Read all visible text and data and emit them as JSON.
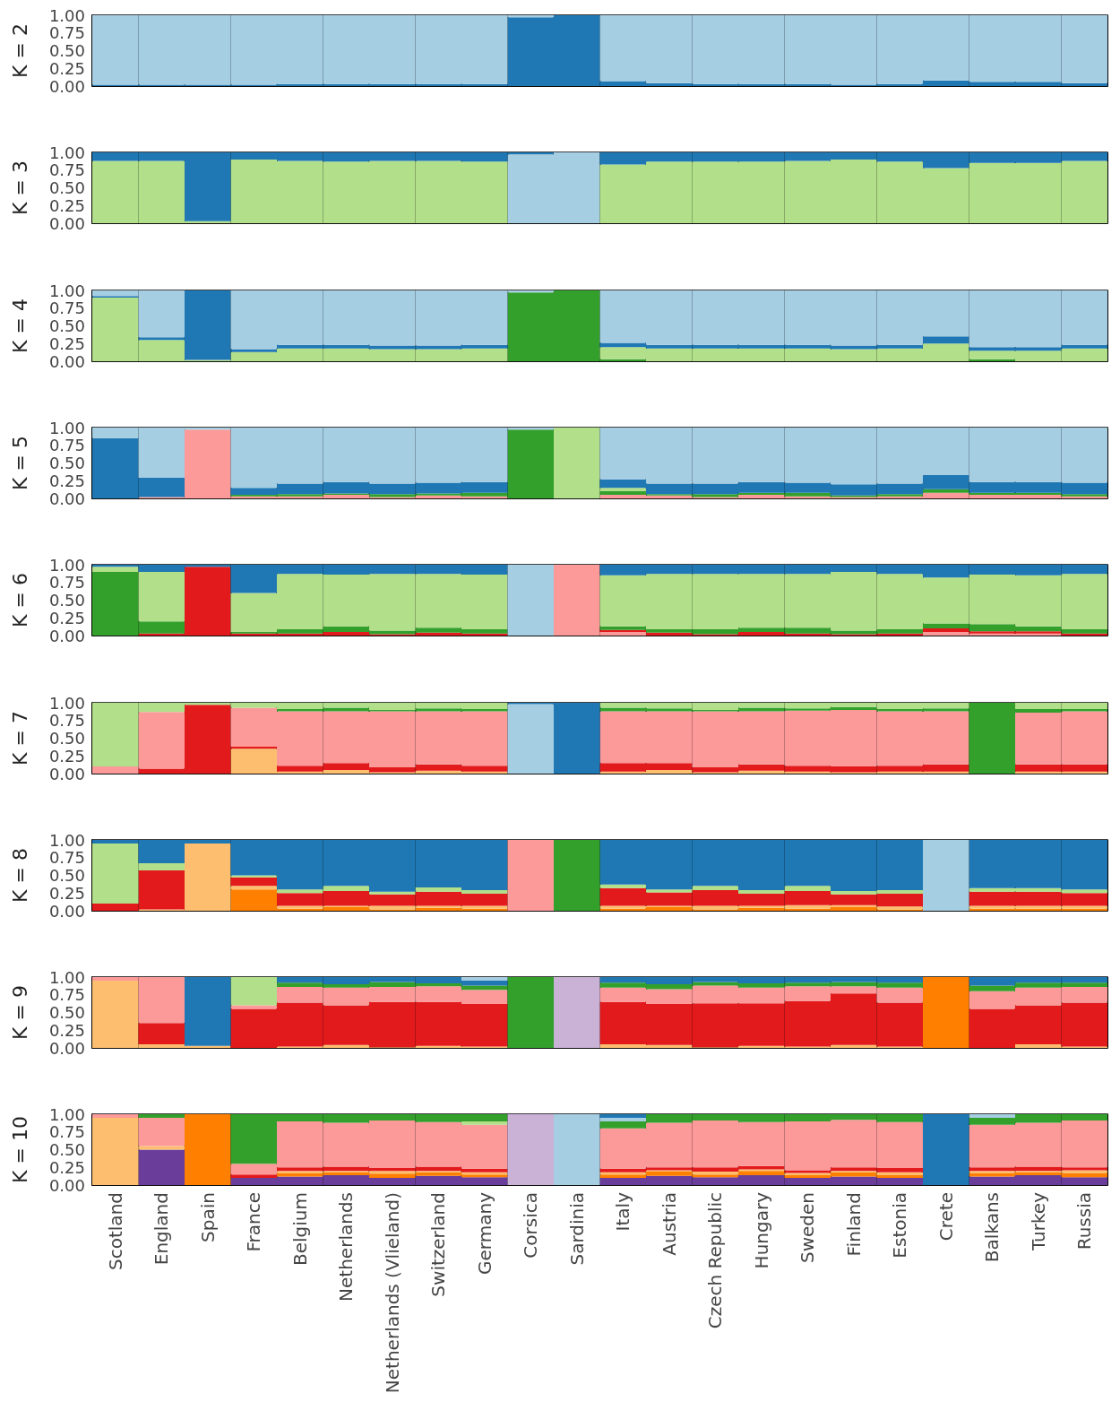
{
  "chart_data": [
    {
      "type": "bar",
      "ylabel": "K = 2",
      "stacked": true,
      "grid": "x",
      "categories": [
        null,
        null,
        null,
        null,
        null,
        null,
        null,
        null,
        null,
        null,
        null,
        null,
        null,
        null,
        null,
        null,
        null,
        null,
        null,
        null,
        null,
        null
      ],
      "ylim": [
        0,
        1
      ],
      "yticks": [
        {
          "value": 0,
          "label": "0.00"
        },
        {
          "value": 0.25,
          "label": "0.25"
        },
        {
          "value": 0.5,
          "label": "0.50"
        },
        {
          "value": 0.75,
          "label": "0.75"
        },
        {
          "value": 1,
          "label": "1.00"
        }
      ],
      "series": [
        {
          "color": "#1f78b4",
          "values": [
            0.02,
            0.02,
            0.02,
            0.02,
            0.03,
            0.03,
            0.03,
            0.03,
            0.03,
            0.97,
            1,
            0.07,
            0.04,
            0.03,
            0.03,
            0.03,
            0.02,
            0.03,
            0.08,
            0.06,
            0.06,
            0.04
          ]
        },
        {
          "color": "#a6cee3",
          "values": [
            0.98,
            0.98,
            0.98,
            0.98,
            0.97,
            0.97,
            0.97,
            0.97,
            0.97,
            0.03,
            0,
            0.93,
            0.96,
            0.97,
            0.97,
            0.97,
            0.98,
            0.97,
            0.92,
            0.94,
            0.94,
            0.96
          ]
        }
      ]
    },
    {
      "type": "bar",
      "ylabel": "K = 3",
      "stacked": true,
      "grid": "x",
      "categories": [
        null,
        null,
        null,
        null,
        null,
        null,
        null,
        null,
        null,
        null,
        null,
        null,
        null,
        null,
        null,
        null,
        null,
        null,
        null,
        null,
        null,
        null
      ],
      "ylim": [
        0,
        1
      ],
      "yticks": [
        {
          "value": 0,
          "label": "0.00"
        },
        {
          "value": 0.25,
          "label": "0.25"
        },
        {
          "value": 0.5,
          "label": "0.50"
        },
        {
          "value": 0.75,
          "label": "0.75"
        },
        {
          "value": 1,
          "label": "1.00"
        }
      ],
      "series": [
        {
          "color": "#a6cee3",
          "values": [
            0,
            0,
            0,
            0,
            0,
            0,
            0,
            0,
            0,
            0.97,
            1,
            0,
            0,
            0,
            0,
            0,
            0,
            0,
            0,
            0,
            0,
            0
          ]
        },
        {
          "color": "#b2df8a",
          "values": [
            0.88,
            0.88,
            0.03,
            0.9,
            0.88,
            0.87,
            0.88,
            0.88,
            0.87,
            0,
            0,
            0.83,
            0.87,
            0.87,
            0.87,
            0.88,
            0.9,
            0.87,
            0.78,
            0.85,
            0.85,
            0.88
          ]
        },
        {
          "color": "#1f78b4",
          "values": [
            0.12,
            0.12,
            0.97,
            0.1,
            0.12,
            0.13,
            0.12,
            0.12,
            0.13,
            0.03,
            0,
            0.17,
            0.13,
            0.13,
            0.13,
            0.12,
            0.1,
            0.13,
            0.22,
            0.15,
            0.15,
            0.12
          ]
        }
      ]
    },
    {
      "type": "bar",
      "ylabel": "K = 4",
      "stacked": true,
      "grid": "x",
      "categories": [
        null,
        null,
        null,
        null,
        null,
        null,
        null,
        null,
        null,
        null,
        null,
        null,
        null,
        null,
        null,
        null,
        null,
        null,
        null,
        null,
        null,
        null
      ],
      "ylim": [
        0,
        1
      ],
      "yticks": [
        {
          "value": 0,
          "label": "0.00"
        },
        {
          "value": 0.25,
          "label": "0.25"
        },
        {
          "value": 0.5,
          "label": "0.50"
        },
        {
          "value": 0.75,
          "label": "0.75"
        },
        {
          "value": 1,
          "label": "1.00"
        }
      ],
      "series": [
        {
          "color": "#33a02c",
          "values": [
            0,
            0,
            0,
            0,
            0,
            0,
            0,
            0,
            0,
            0.97,
            1,
            0.03,
            0,
            0,
            0,
            0,
            0,
            0,
            0,
            0.03,
            0,
            0
          ]
        },
        {
          "color": "#b2df8a",
          "values": [
            0.9,
            0.3,
            0.02,
            0.13,
            0.18,
            0.18,
            0.17,
            0.17,
            0.18,
            0,
            0,
            0.17,
            0.18,
            0.18,
            0.18,
            0.18,
            0.17,
            0.18,
            0.25,
            0.12,
            0.15,
            0.18
          ]
        },
        {
          "color": "#1f78b4",
          "values": [
            0.02,
            0.04,
            0.98,
            0.04,
            0.05,
            0.05,
            0.05,
            0.05,
            0.05,
            0,
            0,
            0.06,
            0.05,
            0.05,
            0.05,
            0.05,
            0.05,
            0.05,
            0.1,
            0.05,
            0.05,
            0.05
          ]
        },
        {
          "color": "#a6cee3",
          "values": [
            0.08,
            0.66,
            0,
            0.83,
            0.77,
            0.77,
            0.78,
            0.78,
            0.77,
            0.03,
            0,
            0.74,
            0.77,
            0.77,
            0.77,
            0.77,
            0.78,
            0.77,
            0.65,
            0.8,
            0.8,
            0.77
          ]
        }
      ]
    },
    {
      "type": "bar",
      "ylabel": "K = 5",
      "stacked": true,
      "grid": "x",
      "categories": [
        null,
        null,
        null,
        null,
        null,
        null,
        null,
        null,
        null,
        null,
        null,
        null,
        null,
        null,
        null,
        null,
        null,
        null,
        null,
        null,
        null,
        null
      ],
      "ylim": [
        0,
        1
      ],
      "yticks": [
        {
          "value": 0,
          "label": "0.00"
        },
        {
          "value": 0.25,
          "label": "0.25"
        },
        {
          "value": 0.5,
          "label": "0.50"
        },
        {
          "value": 0.75,
          "label": "0.75"
        },
        {
          "value": 1,
          "label": "1.00"
        }
      ],
      "series": [
        {
          "color": "#fb9a99",
          "values": [
            0,
            0.02,
            0.97,
            0.03,
            0.03,
            0.05,
            0.02,
            0.04,
            0.03,
            0,
            0,
            0.05,
            0.04,
            0.02,
            0.05,
            0.03,
            0.02,
            0.03,
            0.08,
            0.05,
            0.05,
            0.03
          ]
        },
        {
          "color": "#33a02c",
          "values": [
            0,
            0,
            0,
            0.02,
            0.03,
            0.02,
            0.04,
            0.03,
            0.05,
            0.97,
            0,
            0.05,
            0.02,
            0.04,
            0.03,
            0.05,
            0.02,
            0.03,
            0.05,
            0.03,
            0.03,
            0.03
          ]
        },
        {
          "color": "#b2df8a",
          "values": [
            0,
            0,
            0,
            0,
            0,
            0,
            0,
            0,
            0,
            0,
            1,
            0.05,
            0,
            0,
            0,
            0,
            0,
            0,
            0,
            0,
            0,
            0
          ]
        },
        {
          "color": "#1f78b4",
          "values": [
            0.85,
            0.27,
            0,
            0.1,
            0.15,
            0.16,
            0.15,
            0.15,
            0.15,
            0,
            0,
            0.12,
            0.15,
            0.15,
            0.15,
            0.14,
            0.16,
            0.15,
            0.2,
            0.15,
            0.15,
            0.16
          ]
        },
        {
          "color": "#a6cee3",
          "values": [
            0.15,
            0.71,
            0.03,
            0.85,
            0.79,
            0.77,
            0.79,
            0.78,
            0.77,
            0.03,
            0,
            0.73,
            0.79,
            0.79,
            0.77,
            0.78,
            0.8,
            0.79,
            0.67,
            0.77,
            0.77,
            0.78
          ]
        }
      ]
    },
    {
      "type": "bar",
      "ylabel": "K = 6",
      "stacked": true,
      "grid": "x",
      "categories": [
        null,
        null,
        null,
        null,
        null,
        null,
        null,
        null,
        null,
        null,
        null,
        null,
        null,
        null,
        null,
        null,
        null,
        null,
        null,
        null,
        null,
        null
      ],
      "ylim": [
        0,
        1
      ],
      "yticks": [
        {
          "value": 0,
          "label": "0.00"
        },
        {
          "value": 0.25,
          "label": "0.25"
        },
        {
          "value": 0.5,
          "label": "0.50"
        },
        {
          "value": 0.75,
          "label": "0.75"
        },
        {
          "value": 1,
          "label": "1.00"
        }
      ],
      "series": [
        {
          "color": "#fb9a99",
          "values": [
            0,
            0,
            0,
            0,
            0,
            0,
            0,
            0,
            0,
            0,
            1,
            0.05,
            0,
            0,
            0,
            0,
            0,
            0,
            0.05,
            0.03,
            0.03,
            0
          ]
        },
        {
          "color": "#e31a1c",
          "values": [
            0,
            0.03,
            0.97,
            0.03,
            0.03,
            0.05,
            0.02,
            0.04,
            0.03,
            0,
            0,
            0.03,
            0.04,
            0.02,
            0.05,
            0.03,
            0.02,
            0.03,
            0.05,
            0.03,
            0.03,
            0.03
          ]
        },
        {
          "color": "#33a02c",
          "values": [
            0.9,
            0.17,
            0,
            0.02,
            0.06,
            0.08,
            0.05,
            0.07,
            0.06,
            0,
            0,
            0.05,
            0.05,
            0.07,
            0.06,
            0.08,
            0.05,
            0.06,
            0.07,
            0.1,
            0.07,
            0.06
          ]
        },
        {
          "color": "#b2df8a",
          "values": [
            0.07,
            0.7,
            0,
            0.55,
            0.78,
            0.73,
            0.8,
            0.76,
            0.77,
            0,
            0,
            0.72,
            0.78,
            0.78,
            0.76,
            0.76,
            0.83,
            0.78,
            0.65,
            0.7,
            0.72,
            0.78
          ]
        },
        {
          "color": "#1f78b4",
          "values": [
            0.03,
            0.1,
            0.03,
            0.4,
            0.13,
            0.14,
            0.13,
            0.13,
            0.14,
            0,
            0,
            0.15,
            0.13,
            0.13,
            0.13,
            0.13,
            0.1,
            0.13,
            0.18,
            0.14,
            0.15,
            0.13
          ]
        },
        {
          "color": "#a6cee3",
          "values": [
            0,
            0,
            0,
            0,
            0,
            0,
            0,
            0,
            0,
            1,
            0,
            0,
            0,
            0,
            0,
            0,
            0,
            0,
            0,
            0,
            0,
            0
          ]
        }
      ]
    },
    {
      "type": "bar",
      "ylabel": "K = 7",
      "stacked": true,
      "grid": "x",
      "categories": [
        null,
        null,
        null,
        null,
        null,
        null,
        null,
        null,
        null,
        null,
        null,
        null,
        null,
        null,
        null,
        null,
        null,
        null,
        null,
        null,
        null,
        null
      ],
      "ylim": [
        0,
        1
      ],
      "yticks": [
        {
          "value": 0,
          "label": "0.00"
        },
        {
          "value": 0.25,
          "label": "0.25"
        },
        {
          "value": 0.5,
          "label": "0.50"
        },
        {
          "value": 0.75,
          "label": "0.75"
        },
        {
          "value": 1,
          "label": "1.00"
        }
      ],
      "series": [
        {
          "color": "#fdbf6f",
          "values": [
            0,
            0,
            0,
            0.35,
            0.03,
            0.05,
            0.02,
            0.04,
            0.03,
            0,
            0,
            0.03,
            0.05,
            0.02,
            0.04,
            0.03,
            0.02,
            0.03,
            0.03,
            0,
            0.03,
            0.03
          ]
        },
        {
          "color": "#e31a1c",
          "values": [
            0,
            0.07,
            0.97,
            0.03,
            0.08,
            0.1,
            0.07,
            0.09,
            0.08,
            0,
            0,
            0.12,
            0.1,
            0.07,
            0.09,
            0.08,
            0.08,
            0.08,
            0.1,
            0,
            0.1,
            0.1
          ]
        },
        {
          "color": "#fb9a99",
          "values": [
            0.1,
            0.8,
            0,
            0.55,
            0.77,
            0.73,
            0.79,
            0.75,
            0.77,
            0,
            0,
            0.73,
            0.73,
            0.79,
            0.75,
            0.78,
            0.8,
            0.77,
            0.75,
            0,
            0.73,
            0.75
          ]
        },
        {
          "color": "#33a02c",
          "values": [
            0,
            0,
            0,
            0,
            0.03,
            0.05,
            0.02,
            0.04,
            0.03,
            0,
            0,
            0.05,
            0.04,
            0.02,
            0.05,
            0.03,
            0.04,
            0.03,
            0.04,
            1,
            0.05,
            0.03
          ]
        },
        {
          "color": "#b2df8a",
          "values": [
            0.9,
            0.13,
            0.03,
            0.07,
            0.09,
            0.07,
            0.1,
            0.08,
            0.09,
            0,
            0,
            0.07,
            0.08,
            0.1,
            0.07,
            0.08,
            0.06,
            0.09,
            0.08,
            0,
            0.09,
            0.09
          ]
        },
        {
          "color": "#a6cee3",
          "values": [
            0,
            0,
            0,
            0,
            0,
            0,
            0,
            0,
            0,
            0.98,
            0,
            0,
            0,
            0,
            0,
            0,
            0,
            0,
            0,
            0,
            0,
            0
          ]
        },
        {
          "color": "#1f78b4",
          "values": [
            0,
            0,
            0,
            0,
            0,
            0,
            0,
            0,
            0,
            0.02,
            1,
            0,
            0,
            0,
            0,
            0,
            0,
            0,
            0,
            0,
            0,
            0
          ]
        }
      ]
    },
    {
      "type": "bar",
      "ylabel": "K = 8",
      "stacked": true,
      "grid": "x",
      "categories": [
        null,
        null,
        null,
        null,
        null,
        null,
        null,
        null,
        null,
        null,
        null,
        null,
        null,
        null,
        null,
        null,
        null,
        null,
        null,
        null,
        null,
        null
      ],
      "ylim": [
        0,
        1
      ],
      "yticks": [
        {
          "value": 0,
          "label": "0.00"
        },
        {
          "value": 0.25,
          "label": "0.25"
        },
        {
          "value": 0.5,
          "label": "0.50"
        },
        {
          "value": 0.75,
          "label": "0.75"
        },
        {
          "value": 1,
          "label": "1.00"
        }
      ],
      "series": [
        {
          "color": "#ff7f00",
          "values": [
            0,
            0,
            0,
            0.3,
            0.03,
            0.05,
            0.02,
            0.04,
            0.03,
            0,
            0,
            0.03,
            0.05,
            0.02,
            0.04,
            0.03,
            0.05,
            0.02,
            0,
            0.03,
            0.03,
            0.03
          ]
        },
        {
          "color": "#fdbf6f",
          "values": [
            0,
            0.02,
            0.95,
            0.05,
            0.04,
            0.02,
            0.05,
            0.03,
            0.04,
            0,
            0,
            0.04,
            0.02,
            0.05,
            0.03,
            0.05,
            0.03,
            0.04,
            0,
            0.04,
            0.04,
            0.04
          ]
        },
        {
          "color": "#e31a1c",
          "values": [
            0.1,
            0.55,
            0,
            0.12,
            0.18,
            0.21,
            0.16,
            0.2,
            0.17,
            0,
            0,
            0.25,
            0.19,
            0.22,
            0.17,
            0.2,
            0.15,
            0.18,
            0,
            0.2,
            0.2,
            0.18
          ]
        },
        {
          "color": "#b2df8a",
          "values": [
            0.85,
            0.1,
            0,
            0.03,
            0.05,
            0.07,
            0.04,
            0.06,
            0.05,
            0,
            0,
            0.05,
            0.04,
            0.06,
            0.05,
            0.07,
            0.05,
            0.05,
            0,
            0.05,
            0.05,
            0.05
          ]
        },
        {
          "color": "#1f78b4",
          "values": [
            0.05,
            0.33,
            0.05,
            0.5,
            0.7,
            0.65,
            0.73,
            0.67,
            0.71,
            0,
            0,
            0.63,
            0.7,
            0.65,
            0.71,
            0.65,
            0.72,
            0.71,
            0,
            0.68,
            0.68,
            0.7
          ]
        },
        {
          "color": "#fb9a99",
          "values": [
            0,
            0,
            0,
            0,
            0,
            0,
            0,
            0,
            0,
            1,
            0,
            0,
            0,
            0,
            0,
            0,
            0,
            0,
            0,
            0,
            0,
            0
          ]
        },
        {
          "color": "#33a02c",
          "values": [
            0,
            0,
            0,
            0,
            0,
            0,
            0,
            0,
            0,
            0,
            1,
            0,
            0,
            0,
            0,
            0,
            0,
            0,
            0,
            0,
            0,
            0
          ]
        },
        {
          "color": "#a6cee3",
          "values": [
            0,
            0,
            0,
            0,
            0,
            0,
            0,
            0,
            0,
            0,
            0,
            0,
            0,
            0,
            0,
            0,
            0,
            0,
            1,
            0,
            0,
            0
          ]
        }
      ]
    },
    {
      "type": "bar",
      "ylabel": "K = 9",
      "stacked": true,
      "grid": "x",
      "categories": [
        null,
        null,
        null,
        null,
        null,
        null,
        null,
        null,
        null,
        null,
        null,
        null,
        null,
        null,
        null,
        null,
        null,
        null,
        null,
        null,
        null,
        null
      ],
      "ylim": [
        0,
        1
      ],
      "yticks": [
        {
          "value": 0,
          "label": "0.00"
        },
        {
          "value": 0.25,
          "label": "0.25"
        },
        {
          "value": 0.5,
          "label": "0.50"
        },
        {
          "value": 0.75,
          "label": "0.75"
        },
        {
          "value": 1,
          "label": "1.00"
        }
      ],
      "series": [
        {
          "color": "#fdbf6f",
          "values": [
            0.95,
            0.05,
            0.03,
            0,
            0.02,
            0.04,
            0.01,
            0.03,
            0.02,
            0,
            0,
            0.05,
            0.04,
            0.01,
            0.03,
            0.02,
            0.04,
            0.02,
            0,
            0,
            0.05,
            0.02
          ]
        },
        {
          "color": "#e31a1c",
          "values": [
            0,
            0.3,
            0,
            0.55,
            0.62,
            0.56,
            0.64,
            0.62,
            0.6,
            0,
            0,
            0.6,
            0.58,
            0.62,
            0.6,
            0.64,
            0.73,
            0.62,
            0,
            0.55,
            0.55,
            0.62
          ]
        },
        {
          "color": "#fb9a99",
          "values": [
            0.05,
            0.65,
            0,
            0.05,
            0.22,
            0.25,
            0.21,
            0.22,
            0.2,
            0,
            0,
            0.2,
            0.21,
            0.25,
            0.22,
            0.21,
            0.1,
            0.21,
            0,
            0.25,
            0.25,
            0.22
          ]
        },
        {
          "color": "#b2df8a",
          "values": [
            0,
            0,
            0,
            0.4,
            0,
            0,
            0,
            0,
            0,
            0,
            0,
            0,
            0,
            0,
            0,
            0,
            0,
            0,
            0,
            0,
            0,
            0
          ]
        },
        {
          "color": "#33a02c",
          "values": [
            0,
            0,
            0,
            0,
            0.06,
            0.05,
            0.07,
            0.04,
            0.06,
            1,
            0,
            0.07,
            0.07,
            0.05,
            0.06,
            0.05,
            0.06,
            0.07,
            0,
            0.08,
            0.07,
            0.06
          ]
        },
        {
          "color": "#1f78b4",
          "values": [
            0,
            0,
            0.97,
            0,
            0.08,
            0.1,
            0.07,
            0.09,
            0.07,
            0,
            0,
            0.08,
            0.1,
            0.07,
            0.09,
            0.08,
            0.07,
            0.08,
            0,
            0.12,
            0.08,
            0.08
          ]
        },
        {
          "color": "#cab2d6",
          "values": [
            0,
            0,
            0,
            0,
            0,
            0,
            0,
            0,
            0,
            0,
            1,
            0,
            0,
            0,
            0,
            0,
            0,
            0,
            0,
            0,
            0,
            0
          ]
        },
        {
          "color": "#ff7f00",
          "values": [
            0,
            0,
            0,
            0,
            0,
            0,
            0,
            0,
            0,
            0,
            0,
            0,
            0,
            0,
            0,
            0,
            0,
            0,
            1,
            0,
            0,
            0
          ]
        },
        {
          "color": "#a6cee3",
          "values": [
            0,
            0,
            0,
            0,
            0,
            0,
            0,
            0,
            0.05,
            0,
            0,
            0,
            0,
            0,
            0,
            0,
            0,
            0,
            0,
            0,
            0,
            0
          ]
        }
      ]
    },
    {
      "type": "bar",
      "ylabel": "K = 10",
      "stacked": true,
      "grid": "x",
      "categories": [
        "Scotland",
        "England",
        "Spain",
        "France",
        "Belgium",
        "Netherlands",
        "Netherlands (Vlieland)",
        "Switzerland",
        "Germany",
        "Corsica",
        "Sardinia",
        "Italy",
        "Austria",
        "Czech Republic",
        "Hungary",
        "Sweden",
        "Finland",
        "Estonia",
        "Crete",
        "Balkans",
        "Turkey",
        "Russia"
      ],
      "ylim": [
        0,
        1
      ],
      "yticks": [
        {
          "value": 0,
          "label": "0.00"
        },
        {
          "value": 0.25,
          "label": "0.25"
        },
        {
          "value": 0.5,
          "label": "0.50"
        },
        {
          "value": 0.75,
          "label": "0.75"
        },
        {
          "value": 1,
          "label": "1.00"
        }
      ],
      "series": [
        {
          "color": "#6a3d9a",
          "values": [
            0,
            0.5,
            0,
            0.1,
            0.12,
            0.14,
            0.1,
            0.13,
            0.11,
            0,
            0,
            0.1,
            0.13,
            0.11,
            0.14,
            0.1,
            0.12,
            0.1,
            0,
            0.12,
            0.14,
            0.11
          ]
        },
        {
          "color": "#ff7f00",
          "values": [
            0,
            0,
            1,
            0,
            0.05,
            0.04,
            0.06,
            0.05,
            0.04,
            0,
            0,
            0.05,
            0.06,
            0.04,
            0.06,
            0.04,
            0.06,
            0.04,
            0,
            0.05,
            0.04,
            0.06
          ]
        },
        {
          "color": "#fdbf6f",
          "values": [
            0.95,
            0.05,
            0,
            0,
            0.03,
            0.02,
            0.04,
            0.02,
            0.03,
            0,
            0,
            0.03,
            0.02,
            0.04,
            0.02,
            0.03,
            0.02,
            0.04,
            0,
            0.03,
            0.02,
            0.04
          ]
        },
        {
          "color": "#e31a1c",
          "values": [
            0,
            0,
            0,
            0.05,
            0.05,
            0.06,
            0.04,
            0.06,
            0.05,
            0,
            0,
            0.05,
            0.04,
            0.06,
            0.05,
            0.04,
            0.05,
            0.06,
            0,
            0.05,
            0.06,
            0.04
          ]
        },
        {
          "color": "#fb9a99",
          "values": [
            0.05,
            0.4,
            0,
            0.15,
            0.65,
            0.62,
            0.67,
            0.63,
            0.62,
            0,
            0,
            0.57,
            0.63,
            0.66,
            0.62,
            0.69,
            0.67,
            0.65,
            0,
            0.6,
            0.62,
            0.66
          ]
        },
        {
          "color": "#b2df8a",
          "values": [
            0,
            0,
            0,
            0,
            0,
            0,
            0,
            0,
            0.05,
            0,
            0,
            0,
            0,
            0,
            0,
            0,
            0,
            0,
            0,
            0,
            0,
            0
          ]
        },
        {
          "color": "#33a02c",
          "values": [
            0,
            0.05,
            0,
            0.7,
            0.1,
            0.12,
            0.09,
            0.11,
            0.1,
            0,
            0,
            0.1,
            0.12,
            0.09,
            0.11,
            0.1,
            0.08,
            0.11,
            0,
            0.1,
            0.12,
            0.09
          ]
        },
        {
          "color": "#cab2d6",
          "values": [
            0,
            0,
            0,
            0,
            0,
            0,
            0,
            0,
            0,
            1,
            0,
            0,
            0,
            0,
            0,
            0,
            0,
            0,
            0,
            0,
            0,
            0
          ]
        },
        {
          "color": "#a6cee3",
          "values": [
            0,
            0,
            0,
            0,
            0,
            0,
            0,
            0,
            0,
            0,
            1,
            0.05,
            0,
            0,
            0,
            0,
            0,
            0,
            0,
            0.05,
            0,
            0
          ]
        },
        {
          "color": "#1f78b4",
          "values": [
            0,
            0,
            0,
            0,
            0,
            0,
            0,
            0,
            0,
            0,
            0,
            0.05,
            0,
            0,
            0,
            0,
            0,
            0,
            1,
            0,
            0,
            0
          ]
        }
      ]
    }
  ]
}
